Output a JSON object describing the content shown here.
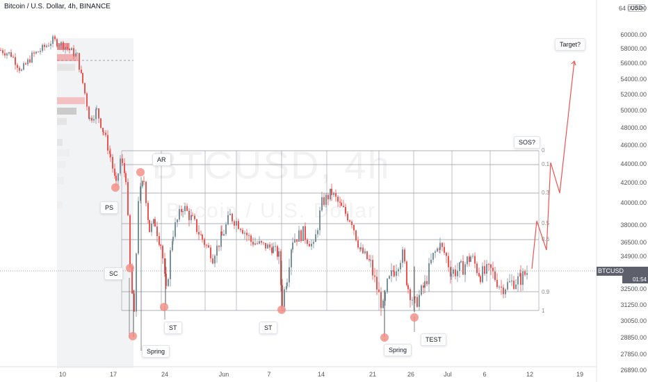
{
  "header": {
    "title": "Bitcoin / U.S. Dollar, 4h, BINANCE",
    "currency_label": "USD"
  },
  "watermark": {
    "symbol": "BTCUSD, 4h",
    "name": "Bitcoin / U.S. Dollar"
  },
  "price_badge": {
    "symbol": "BTCUSD",
    "price": "33986.25",
    "countdown": "01:54"
  },
  "colors": {
    "up": "#78909c",
    "down": "#ef5350",
    "annotation": "#f28b82",
    "grid": "#9598a1"
  },
  "chart_data": {
    "type": "candlestick",
    "y_axis_ticks": [
      "26890.00",
      "27850.00",
      "28850.00",
      "30050.00",
      "31250.00",
      "32500.00",
      "33750.00",
      "34900.00",
      "36500.00",
      "38000.00",
      "40000.00",
      "42000.00",
      "44000.00",
      "46000.00",
      "48000.00",
      "50000.00",
      "52000.00",
      "54000.00",
      "56000.00",
      "58000.00",
      "60000.00",
      "64 000.00"
    ],
    "x_axis_ticks": [
      "10",
      "17",
      "24",
      "Jun",
      "7",
      "14",
      "21",
      "26",
      "Jul",
      "6",
      "12",
      "19"
    ],
    "fib_levels": [
      "0",
      "0.1",
      "0.3",
      "0.5",
      "0.6",
      "0.9",
      "1"
    ],
    "annotations": [
      "PS",
      "SC",
      "AR",
      "ST",
      "Spring",
      "ST",
      "Spring",
      "TEST",
      "SOS?",
      "Target?"
    ],
    "price_path": [
      [
        0,
        57800
      ],
      [
        15,
        57200
      ],
      [
        30,
        55000
      ],
      [
        45,
        57000
      ],
      [
        60,
        58000
      ],
      [
        75,
        59200
      ],
      [
        90,
        58500
      ],
      [
        110,
        57000
      ],
      [
        118,
        53500
      ],
      [
        128,
        49000
      ],
      [
        138,
        50000
      ],
      [
        148,
        47500
      ],
      [
        158,
        44800
      ],
      [
        166,
        41600
      ],
      [
        172,
        44500
      ],
      [
        180,
        42600
      ],
      [
        186,
        34000
      ],
      [
        192,
        30200
      ],
      [
        198,
        40500
      ],
      [
        206,
        42200
      ],
      [
        214,
        37600
      ],
      [
        222,
        38200
      ],
      [
        230,
        36300
      ],
      [
        238,
        32200
      ],
      [
        248,
        37400
      ],
      [
        262,
        39700
      ],
      [
        276,
        38400
      ],
      [
        290,
        36800
      ],
      [
        305,
        35000
      ],
      [
        318,
        37000
      ],
      [
        330,
        38800
      ],
      [
        345,
        38000
      ],
      [
        360,
        36600
      ],
      [
        375,
        36200
      ],
      [
        392,
        35800
      ],
      [
        400,
        35000
      ],
      [
        405,
        31500
      ],
      [
        412,
        33500
      ],
      [
        420,
        36800
      ],
      [
        435,
        37300
      ],
      [
        450,
        36000
      ],
      [
        462,
        40000
      ],
      [
        476,
        41000
      ],
      [
        490,
        39500
      ],
      [
        505,
        38400
      ],
      [
        518,
        35500
      ],
      [
        532,
        34300
      ],
      [
        544,
        32000
      ],
      [
        550,
        31000
      ],
      [
        556,
        32800
      ],
      [
        566,
        34000
      ],
      [
        578,
        35200
      ],
      [
        586,
        32600
      ],
      [
        596,
        31300
      ],
      [
        610,
        32800
      ],
      [
        622,
        35000
      ],
      [
        632,
        36200
      ],
      [
        648,
        33800
      ],
      [
        662,
        34000
      ],
      [
        676,
        34900
      ],
      [
        690,
        33600
      ],
      [
        705,
        33900
      ],
      [
        720,
        32600
      ],
      [
        735,
        33000
      ],
      [
        748,
        33300
      ],
      [
        760,
        34000
      ]
    ]
  }
}
